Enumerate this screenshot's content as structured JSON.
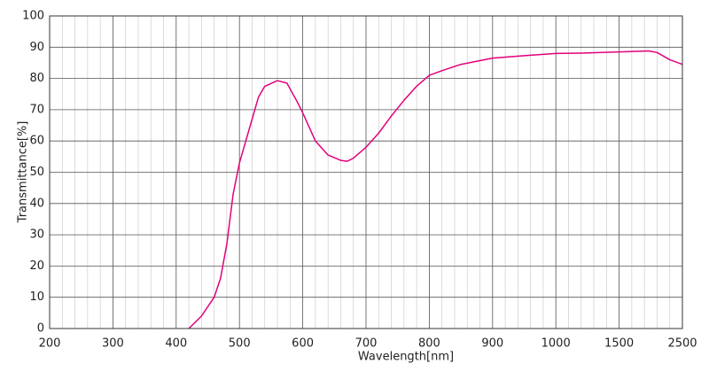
{
  "chart_data": {
    "type": "line",
    "x_label": "Wavelength[nm]",
    "y_label": "Transmittance[%]",
    "x": [
      420,
      440,
      460,
      470,
      480,
      490,
      500,
      520,
      530,
      540,
      560,
      575,
      590,
      600,
      620,
      640,
      660,
      670,
      680,
      700,
      720,
      740,
      760,
      780,
      800,
      820,
      850,
      900,
      950,
      1000,
      1200,
      1500,
      1970,
      2100,
      2300,
      2500
    ],
    "series": [
      {
        "name": "Transmittance",
        "color": "#e2007a",
        "values": [
          0,
          4,
          10,
          16,
          27,
          43,
          53,
          67,
          74,
          77.5,
          79.3,
          78.5,
          73,
          69,
          60,
          55.5,
          53.8,
          53.5,
          54.5,
          58,
          62.5,
          68,
          73,
          77.5,
          81,
          82.5,
          84.5,
          86.5,
          87.3,
          88,
          88.1,
          88.5,
          88.8,
          88.3,
          86,
          84.5
        ]
      }
    ],
    "xlim": [
      200,
      2500
    ],
    "xticks": [
      200,
      300,
      400,
      500,
      600,
      700,
      800,
      900,
      1000,
      1500,
      2500
    ],
    "ylim": [
      0,
      100
    ],
    "yticks": [
      0,
      10,
      20,
      30,
      40,
      50,
      60,
      70,
      80,
      90,
      100
    ],
    "grid": true
  }
}
